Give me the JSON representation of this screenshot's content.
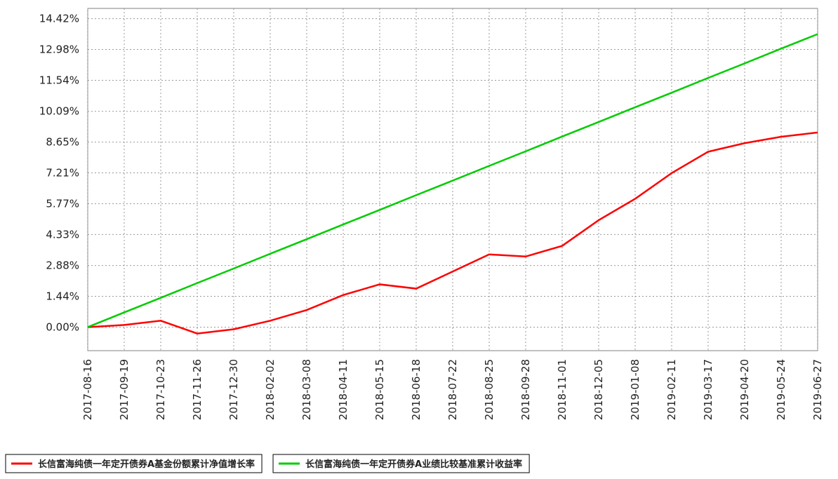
{
  "chart_data": {
    "type": "line",
    "categories": [
      "2017-08-16",
      "2017-09-19",
      "2017-10-23",
      "2017-11-26",
      "2017-12-30",
      "2018-02-02",
      "2018-03-08",
      "2018-04-11",
      "2018-05-15",
      "2018-06-18",
      "2018-07-22",
      "2018-08-25",
      "2018-09-28",
      "2018-11-01",
      "2018-12-05",
      "2019-01-08",
      "2019-02-11",
      "2019-03-17",
      "2019-04-20",
      "2019-05-24",
      "2019-06-27"
    ],
    "series": [
      {
        "name": "长信富海纯债一年定开债券A基金份额累计净值增长率",
        "color": "#ff0000",
        "values": [
          0,
          0.1,
          0.3,
          -0.3,
          -0.1,
          0.3,
          0.8,
          1.5,
          2.0,
          1.8,
          2.6,
          3.4,
          3.3,
          3.8,
          5.0,
          6.0,
          7.2,
          8.2,
          8.6,
          8.9,
          9.1
        ]
      },
      {
        "name": "长信富海纯债一年定开债券A业绩比较基准累计收益率",
        "color": "#00cc00",
        "values": [
          0,
          0.69,
          1.37,
          2.06,
          2.74,
          3.43,
          4.11,
          4.8,
          5.48,
          6.17,
          6.85,
          7.54,
          8.22,
          8.91,
          9.59,
          10.28,
          10.96,
          11.65,
          12.33,
          13.02,
          13.7
        ]
      }
    ],
    "ylim": [
      -1.1,
      14.9
    ],
    "yticks": [
      {
        "value": 0,
        "label": "0.00%"
      },
      {
        "value": 1.44,
        "label": "1.44%"
      },
      {
        "value": 2.88,
        "label": "2.88%"
      },
      {
        "value": 4.33,
        "label": "4.33%"
      },
      {
        "value": 5.77,
        "label": "5.77%"
      },
      {
        "value": 7.21,
        "label": "7.21%"
      },
      {
        "value": 8.65,
        "label": "8.65%"
      },
      {
        "value": 10.09,
        "label": "10.09%"
      },
      {
        "value": 11.54,
        "label": "11.54%"
      },
      {
        "value": 12.98,
        "label": "12.98%"
      },
      {
        "value": 14.42,
        "label": "14.42%"
      }
    ],
    "grid": true
  }
}
